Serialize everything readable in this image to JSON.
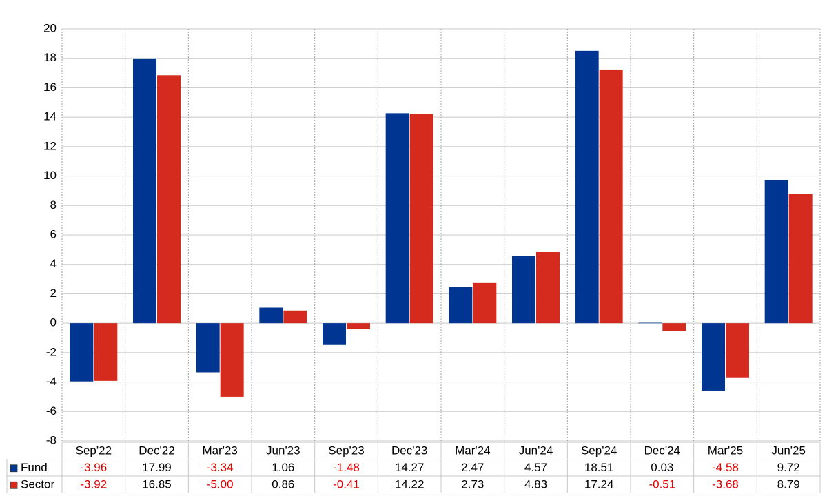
{
  "chart_data": {
    "type": "bar",
    "categories": [
      "Sep'22",
      "Dec'22",
      "Mar'23",
      "Jun'23",
      "Sep'23",
      "Dec'23",
      "Mar'24",
      "Jun'24",
      "Sep'24",
      "Dec'24",
      "Mar'25",
      "Jun'25"
    ],
    "series": [
      {
        "name": "Fund",
        "color": "#003592",
        "values": [
          -3.96,
          17.99,
          -3.34,
          1.06,
          -1.48,
          14.27,
          2.47,
          4.57,
          18.51,
          0.03,
          -4.58,
          9.72
        ],
        "value_labels": [
          "-3.96",
          "17.99",
          "-3.34",
          "1.06",
          "-1.48",
          "14.27",
          "2.47",
          "4.57",
          "18.51",
          "0.03",
          "-4.58",
          "9.72"
        ]
      },
      {
        "name": "Sector",
        "color": "#d52b1e",
        "values": [
          -3.92,
          16.85,
          -5.0,
          0.86,
          -0.41,
          14.22,
          2.73,
          4.83,
          17.24,
          -0.51,
          -3.68,
          8.79
        ],
        "value_labels": [
          "-3.92",
          "16.85",
          "-5.00",
          "0.86",
          "-0.41",
          "14.22",
          "2.73",
          "4.83",
          "17.24",
          "-0.51",
          "-3.68",
          "8.79"
        ]
      }
    ],
    "ylim": [
      -8,
      20
    ],
    "yticks": [
      -8,
      -6,
      -4,
      -2,
      0,
      2,
      4,
      6,
      8,
      10,
      12,
      14,
      16,
      18,
      20
    ],
    "grid": true,
    "negative_label_color": "#e00000"
  }
}
